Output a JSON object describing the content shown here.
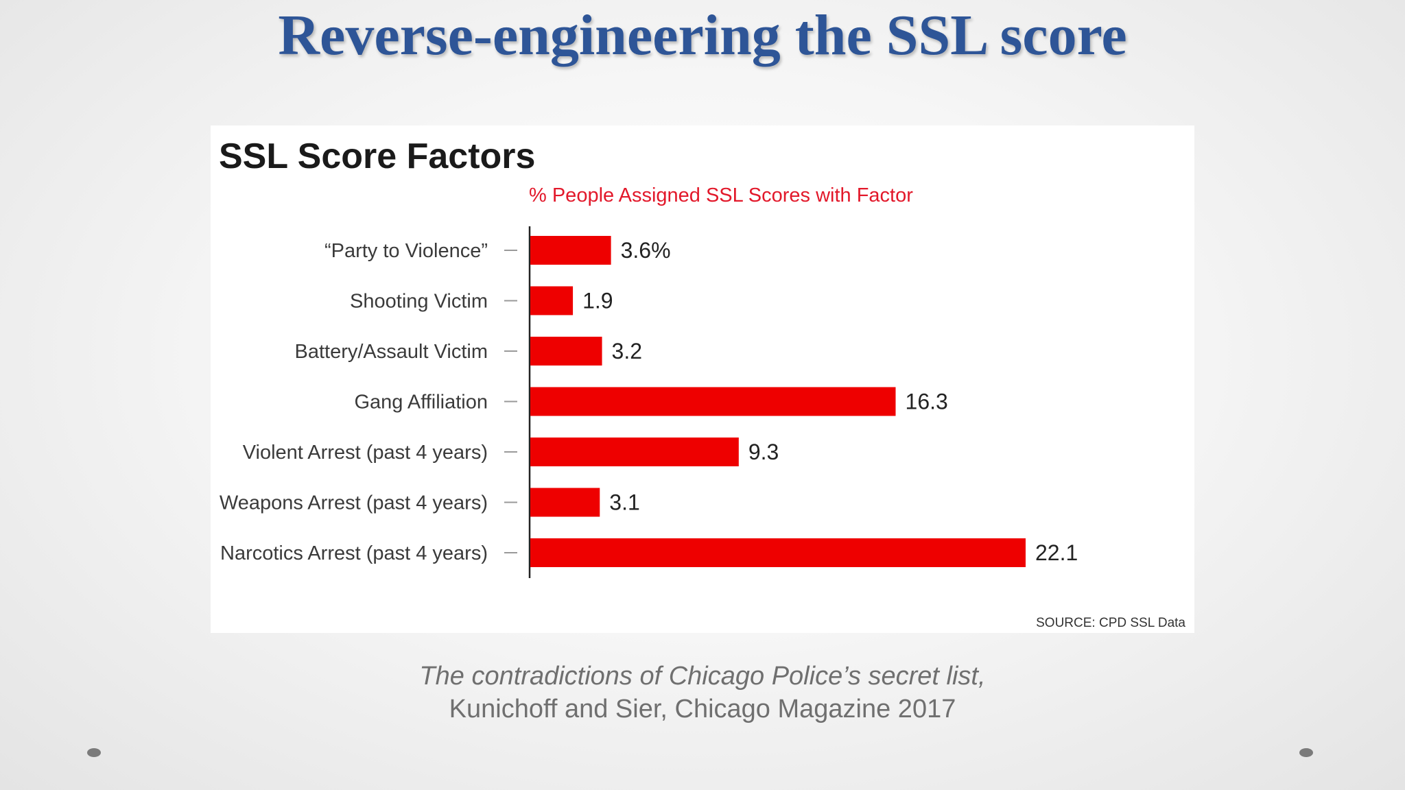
{
  "slide": {
    "title": "Reverse-engineering the SSL score",
    "caption_title": "The contradictions of Chicago Police’s secret list,",
    "caption_authors": "Kunichoff and Sier, Chicago Magazine 2017"
  },
  "chart_data": {
    "type": "bar",
    "orientation": "horizontal",
    "title": "SSL Score Factors",
    "subtitle": "% People Assigned SSL Scores with Factor",
    "categories": [
      "“Party to Violence”",
      "Shooting Victim",
      "Battery/Assault Victim",
      "Gang Affiliation",
      "Violent Arrest (past 4 years)",
      "Weapons Arrest (past 4 years)",
      "Narcotics Arrest (past 4 years)"
    ],
    "values": [
      3.6,
      1.9,
      3.2,
      16.3,
      9.3,
      3.1,
      22.1
    ],
    "value_labels": [
      "3.6%",
      "1.9",
      "3.2",
      "16.3",
      "9.3",
      "3.1",
      "22.1"
    ],
    "source": "SOURCE: CPD SSL Data",
    "xlim": [
      0,
      22.1
    ],
    "grid": false,
    "colors": {
      "bar": "#ee0000",
      "subtitle": "#e2182a",
      "title": "#1a1a1a",
      "label": "#3a3a3a"
    }
  },
  "colors": {
    "slide_title": "#2e5597",
    "caption": "#6f6f6f"
  }
}
